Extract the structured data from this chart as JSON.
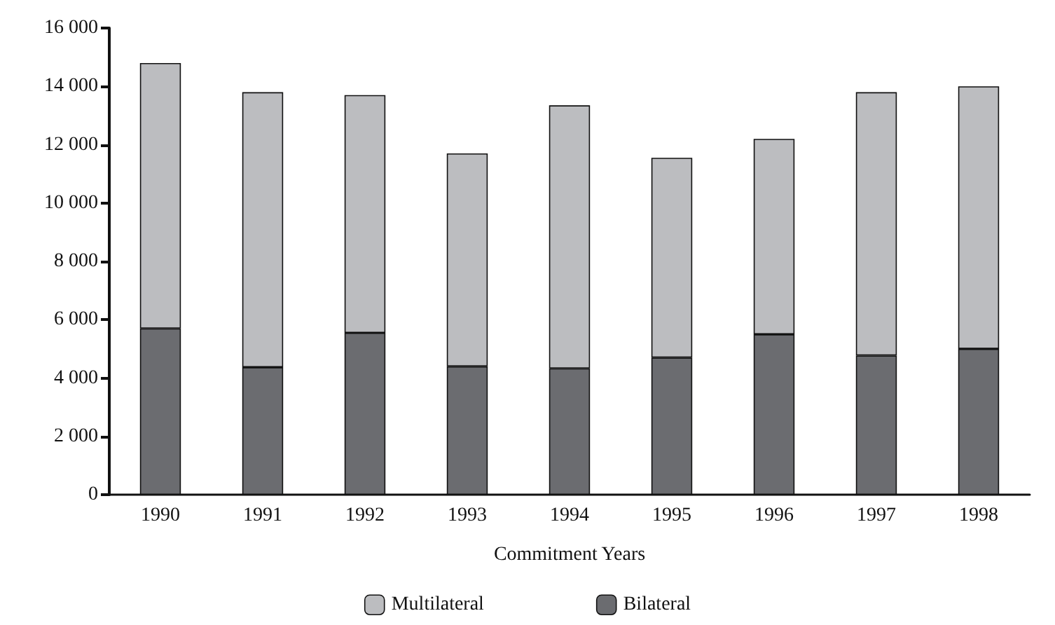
{
  "chart_data": {
    "type": "bar",
    "stacked": true,
    "xlabel": "Commitment Years",
    "categories": [
      "1990",
      "1991",
      "1992",
      "1993",
      "1994",
      "1995",
      "1996",
      "1997",
      "1998"
    ],
    "series": [
      {
        "name": "Bilateral",
        "color": "#6b6c70",
        "values": [
          5700,
          4370,
          5550,
          4400,
          4330,
          4700,
          5500,
          4770,
          5000
        ]
      },
      {
        "name": "Multilateral",
        "color": "#bcbdc0",
        "values": [
          9100,
          9430,
          8150,
          7300,
          9020,
          6850,
          6700,
          9030,
          9000
        ]
      }
    ],
    "ylim": [
      0,
      16000
    ],
    "yticks": [
      {
        "value": 0,
        "label": "0"
      },
      {
        "value": 2000,
        "label": "2 000"
      },
      {
        "value": 4000,
        "label": "4 000"
      },
      {
        "value": 6000,
        "label": "6 000"
      },
      {
        "value": 8000,
        "label": "8 000"
      },
      {
        "value": 10000,
        "label": "10 000"
      },
      {
        "value": 12000,
        "label": "12 000"
      },
      {
        "value": 14000,
        "label": "14 000"
      },
      {
        "value": 16000,
        "label": "16 000"
      }
    ],
    "grid": false,
    "legend": "bottom"
  }
}
